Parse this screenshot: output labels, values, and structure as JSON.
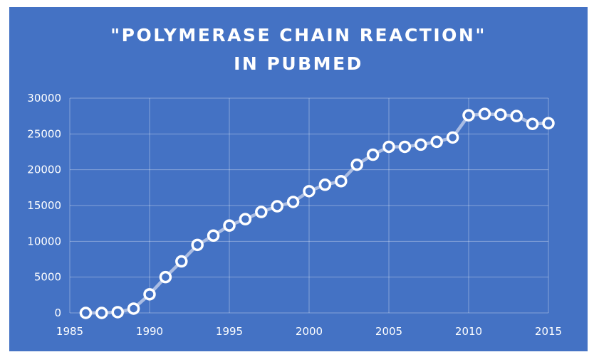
{
  "chart_data": {
    "type": "line",
    "title": [
      "\"POLYMERASE CHAIN REACTION\"",
      "IN PUBMED"
    ],
    "xlabel": "",
    "ylabel": "",
    "xlim": [
      1985,
      2015
    ],
    "ylim": [
      0,
      30000
    ],
    "x_ticks": [
      1985,
      1990,
      1995,
      2000,
      2005,
      2010,
      2015
    ],
    "y_ticks": [
      0,
      5000,
      10000,
      15000,
      20000,
      25000,
      30000
    ],
    "grid": true,
    "legend": "none",
    "colors": {
      "background": "#4472c4",
      "line": "#a9bce3",
      "marker_stroke": "#ffffff",
      "marker_fill": "#4472c4",
      "text": "#ffffff"
    },
    "series": [
      {
        "x": [
          1986,
          1987,
          1988,
          1989,
          1990,
          1991,
          1992,
          1993,
          1994,
          1995,
          1996,
          1997,
          1998,
          1999,
          2000,
          2001,
          2002,
          2003,
          2004,
          2005,
          2006,
          2007,
          2008,
          2009,
          2010,
          2011,
          2012,
          2013,
          2014,
          2015
        ],
        "y": [
          0,
          0,
          100,
          600,
          2600,
          5000,
          7200,
          9500,
          10800,
          12200,
          13100,
          14100,
          14900,
          15500,
          17000,
          17900,
          18400,
          20700,
          22100,
          23200,
          23200,
          23500,
          23900,
          24500,
          27600,
          27800,
          27700,
          27500,
          26400,
          26500
        ]
      }
    ]
  }
}
